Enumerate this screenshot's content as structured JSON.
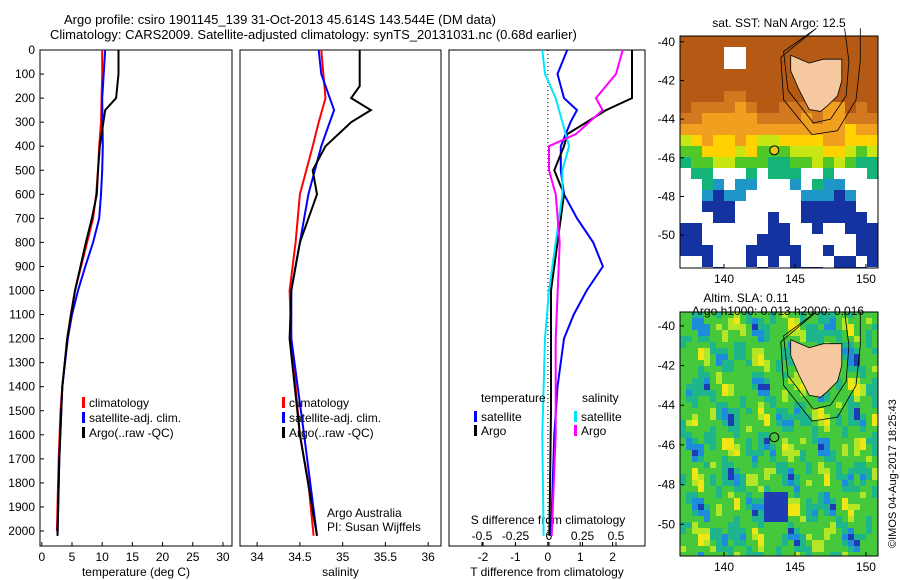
{
  "header": {
    "title_line1": "Argo profile: csiro 1901145_139 31-Oct-2013 45.614S 143.544E (DM data)",
    "title_line2": "Climatology: CARS2009. Satellite-adjusted climatology: synTS_20131031.nc (0.68d earlier)"
  },
  "colors": {
    "climatology": "#ff0000",
    "satellite": "#0000ff",
    "argo": "#000000",
    "s_satellite": "#00e5ff",
    "s_argo": "#ff00ff"
  },
  "chart_data": [
    {
      "type": "line",
      "id": "temperature",
      "xlabel": "temperature (deg C)",
      "ylabel": "",
      "xlim": [
        -0.3,
        31.5
      ],
      "ylim": [
        2050,
        0
      ],
      "xticks": [
        "0",
        "5",
        "10",
        "15",
        "20",
        "25",
        "30"
      ],
      "xtick_values": [
        0,
        5,
        10,
        15,
        20,
        25,
        30
      ],
      "yticks": [
        "0",
        "100",
        "200",
        "300",
        "400",
        "500",
        "600",
        "700",
        "800",
        "900",
        "1000",
        "1100",
        "1200",
        "1300",
        "1400",
        "1500",
        "1600",
        "1700",
        "1800",
        "1900",
        "2000"
      ],
      "legend": [
        "climatology",
        "satellite-adj. clim.",
        "Argo(..raw -QC)"
      ],
      "legend_placement": "lower-center",
      "series": [
        {
          "name": "climatology",
          "depth": [
            0,
            100,
            300,
            400,
            500,
            600,
            700,
            800,
            900,
            1000,
            1100,
            1200,
            1300,
            1400,
            1500,
            1700,
            2000
          ],
          "values": [
            10,
            10,
            9.8,
            9.5,
            9.3,
            9,
            8.5,
            7.5,
            6.5,
            5.5,
            4.8,
            4.2,
            3.8,
            3.4,
            3.1,
            2.8,
            2.5
          ]
        },
        {
          "name": "satellite-adj. clim.",
          "depth": [
            0,
            200,
            400,
            500,
            600,
            700,
            800,
            900,
            1000,
            1100,
            1200,
            1400,
            1700,
            2020
          ],
          "values": [
            10.5,
            10,
            10.1,
            10,
            9.8,
            9.5,
            8.5,
            7.2,
            6,
            5,
            4.3,
            3.4,
            2.9,
            2.6
          ]
        },
        {
          "name": "Argo(..raw -QC)",
          "depth": [
            0,
            100,
            200,
            250,
            400,
            500,
            600,
            700,
            800,
            900,
            1000,
            1200,
            1400,
            1700,
            2020
          ],
          "values": [
            12.7,
            12.7,
            12.3,
            10.5,
            9.6,
            9.3,
            9.1,
            8.3,
            7.3,
            6.4,
            5.5,
            4.2,
            3.4,
            2.9,
            2.6
          ]
        }
      ]
    },
    {
      "type": "line",
      "id": "salinity",
      "xlabel": "salinity",
      "xlim": [
        33.8,
        36.15
      ],
      "ylim": [
        2050,
        0
      ],
      "xticks": [
        "34",
        "34.5",
        "35",
        "35.5",
        "36"
      ],
      "xtick_values": [
        34,
        34.5,
        35,
        35.5,
        36
      ],
      "legend": [
        "climatology",
        "satellite-adj. clim.",
        "Argo(..raw -QC)"
      ],
      "annotation": [
        "Argo Australia",
        "PI: Susan Wijffels"
      ],
      "series": [
        {
          "name": "climatology",
          "depth": [
            0,
            200,
            300,
            400,
            600,
            800,
            1000,
            1200,
            1400,
            1600,
            1800,
            2020
          ],
          "values": [
            34.75,
            34.8,
            34.72,
            34.65,
            34.5,
            34.45,
            34.38,
            34.4,
            34.45,
            34.5,
            34.6,
            34.66
          ]
        },
        {
          "name": "satellite-adj. clim.",
          "depth": [
            0,
            100,
            200,
            250,
            350,
            400,
            600,
            800,
            1000,
            1200,
            1600,
            2020
          ],
          "values": [
            34.72,
            34.75,
            34.85,
            34.9,
            34.8,
            34.75,
            34.6,
            34.5,
            34.4,
            34.4,
            34.55,
            34.7
          ]
        },
        {
          "name": "Argo(..raw -QC)",
          "depth": [
            0,
            150,
            200,
            250,
            300,
            400,
            500,
            600,
            800,
            1000,
            1200,
            1600,
            2020
          ],
          "values": [
            35.2,
            35.2,
            35.1,
            35.33,
            35.1,
            34.8,
            34.65,
            34.7,
            34.5,
            34.4,
            34.38,
            34.5,
            34.7
          ]
        }
      ]
    },
    {
      "type": "line",
      "id": "difference",
      "xlabel": "T difference from climatology",
      "xlabel_top": "S difference from climatology",
      "xlim": [
        -3.05,
        3.0
      ],
      "ylim": [
        2050,
        0
      ],
      "xticks": [
        "-2",
        "-1",
        "0",
        "1",
        "2"
      ],
      "xtick_values": [
        -2,
        -1,
        0,
        1,
        2
      ],
      "s_xticks": [
        "-0.5",
        "-0.25",
        "0",
        "0.25",
        "0.5"
      ],
      "s_xtick_values": [
        -0.5,
        -0.25,
        0,
        0.25,
        0.5
      ],
      "legend": {
        "temperature_heading": "temperature",
        "salinity_heading": "salinity",
        "t_sat": "satellite",
        "t_argo": "Argo",
        "s_sat": "satellite",
        "s_argo": "Argo"
      },
      "series": [
        {
          "name": "T satellite",
          "axis": "T",
          "depth": [
            0,
            100,
            200,
            250,
            300,
            400,
            500,
            600,
            700,
            800,
            900,
            1000,
            1100,
            1200,
            1400,
            1600,
            2020
          ],
          "values": [
            0.6,
            0.3,
            0.5,
            0.9,
            0.7,
            0.4,
            0.4,
            0.5,
            0.9,
            1.4,
            1.7,
            1.2,
            0.8,
            0.5,
            0.3,
            0.2,
            0.1
          ]
        },
        {
          "name": "T Argo",
          "axis": "T",
          "depth": [
            0,
            100,
            200,
            250,
            350,
            400,
            500,
            600,
            700,
            800,
            1000,
            1500,
            2020
          ],
          "values": [
            2.6,
            2.6,
            2.6,
            1.8,
            0.6,
            0.5,
            0.2,
            0.5,
            0.4,
            0.3,
            0.1,
            0.1,
            0.05
          ]
        },
        {
          "name": "S satellite",
          "axis": "S",
          "depth": [
            0,
            100,
            200,
            300,
            400,
            500,
            600,
            800,
            1000,
            1200,
            1600,
            2020
          ],
          "values": [
            -0.05,
            -0.03,
            0.05,
            0.1,
            0.15,
            0.1,
            0.1,
            0.05,
            0,
            -0.03,
            -0.05,
            -0.04
          ]
        },
        {
          "name": "S Argo",
          "axis": "S",
          "depth": [
            0,
            100,
            200,
            250,
            350,
            400,
            500,
            600,
            800,
            1200,
            1600,
            2020
          ],
          "values": [
            0.55,
            0.5,
            0.35,
            0.4,
            0.2,
            0,
            0,
            0.05,
            0.08,
            0.05,
            0.05,
            0.02
          ]
        }
      ]
    },
    {
      "type": "heatmap",
      "id": "sst_map",
      "title": "sat. SST: NaN Argo: 12.5",
      "lon_range": [
        136.9,
        150.85
      ],
      "lat_range": [
        -51.7,
        -39.7
      ],
      "xticks": [
        "140",
        "145",
        "150"
      ],
      "xtick_values": [
        140,
        145,
        150
      ],
      "yticks": [
        "-40",
        "-42",
        "-44",
        "-46",
        "-48",
        "-50"
      ],
      "ytick_values": [
        -40,
        -42,
        -44,
        -46,
        -48,
        -50
      ],
      "marker": {
        "lon": 143.544,
        "lat": -45.614
      }
    },
    {
      "type": "heatmap",
      "id": "sla_map",
      "title_line1": "Altim. SLA: 0.11",
      "title_line2": "Argo h1000: 0.013 h2000: 0.016",
      "lon_range": [
        136.9,
        150.85
      ],
      "lat_range": [
        -51.6,
        -39.3
      ],
      "xticks": [
        "140",
        "145",
        "150"
      ],
      "xtick_values": [
        140,
        145,
        150
      ],
      "yticks": [
        "-40",
        "-42",
        "-44",
        "-46",
        "-48",
        "-50"
      ],
      "ytick_values": [
        -40,
        -42,
        -44,
        -46,
        -48,
        -50
      ],
      "marker": {
        "lon": 143.544,
        "lat": -45.614
      }
    }
  ],
  "watermark": "©IMOS 04-Aug-2017 18:25:43"
}
